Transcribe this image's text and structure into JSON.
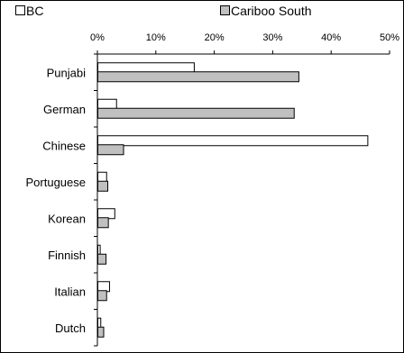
{
  "chart_data": {
    "type": "bar",
    "orientation": "horizontal",
    "categories": [
      "Punjabi",
      "German",
      "Chinese",
      "Portuguese",
      "Korean",
      "Finnish",
      "Italian",
      "Dutch"
    ],
    "series": [
      {
        "name": "BC",
        "values": [
          16.5,
          3.2,
          46.2,
          1.5,
          2.9,
          0.4,
          2.0,
          0.5
        ],
        "color": "#ffffff"
      },
      {
        "name": "Cariboo South",
        "values": [
          34.4,
          33.6,
          4.4,
          1.7,
          1.8,
          1.4,
          1.5,
          1.0
        ],
        "color": "#c0c0c0"
      }
    ],
    "xlim": [
      0,
      50
    ],
    "x_ticks": [
      "0%",
      "10%",
      "20%",
      "30%",
      "40%",
      "50%"
    ],
    "x_tick_values": [
      0,
      10,
      20,
      30,
      40,
      50
    ],
    "xaxis_position": "top",
    "legend_position": "top",
    "grid": false
  }
}
